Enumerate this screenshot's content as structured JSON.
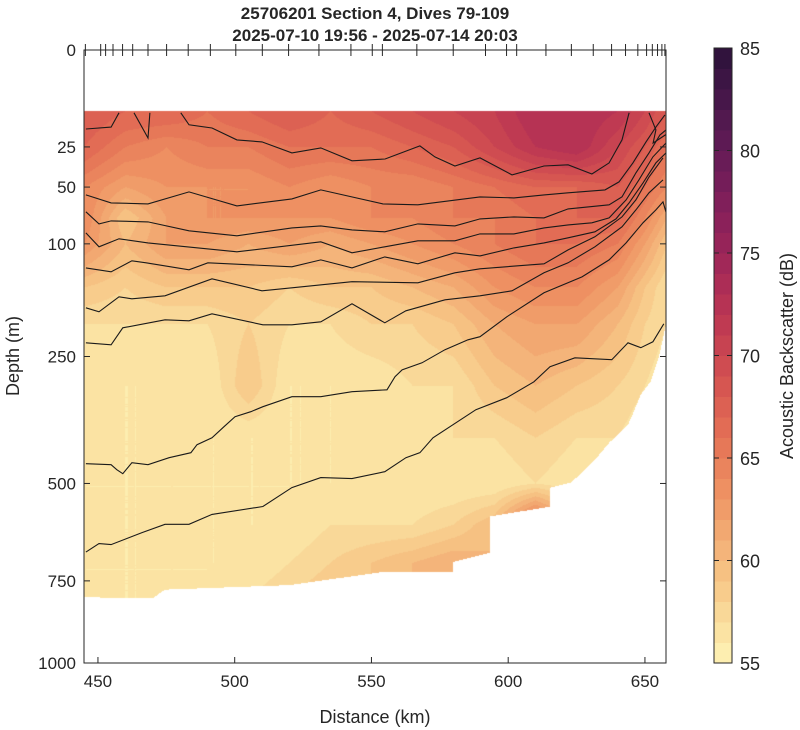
{
  "chart_data": {
    "type": "heatmap",
    "subtype": "filled-contour section with line contours",
    "title": [
      "25706201 Section 4, Dives 79-109",
      "2025-07-10 19:56 - 2025-07-14 20:03"
    ],
    "xlabel": "Distance (km)",
    "ylabel": "Depth (m)",
    "xlim": [
      444.9,
      657.7
    ],
    "ylim": [
      0,
      1000
    ],
    "y_scale": "sqrt",
    "y_reversed": true,
    "xticks": [
      450,
      500,
      550,
      600,
      650
    ],
    "yticks": [
      0,
      25,
      50,
      100,
      250,
      500,
      750,
      1000
    ],
    "colorbar": {
      "label": "Acoustic Backscatter (dB)",
      "range": [
        55,
        85
      ],
      "ticks": [
        55,
        60,
        65,
        70,
        75,
        80,
        85
      ],
      "level_step": 1,
      "colors": [
        "#fdeeb0",
        "#fbe3a3",
        "#f9d898",
        "#f8cc8c",
        "#f6c182",
        "#f4b47a",
        "#f2a871",
        "#f09c69",
        "#ee9062",
        "#ea845d",
        "#e67858",
        "#e26c55",
        "#dc6153",
        "#d65651",
        "#cf4c51",
        "#c74351",
        "#bf3a52",
        "#b63354",
        "#ac2d56",
        "#a12858",
        "#962459",
        "#8b215a",
        "#801f5a",
        "#741d59",
        "#691c57",
        "#5d1a54",
        "#52194f",
        "#47174a",
        "#3c1544",
        "#31133d"
      ]
    },
    "dive_positions_km": [
      445.4,
      451,
      452.8,
      455.5,
      459,
      462.7,
      468.3,
      475.1,
      483,
      491.1,
      500.4,
      510.1,
      519.7,
      530.8,
      542.5,
      550.3,
      554,
      566.6,
      579.9,
      591.7,
      599.4,
      603.1,
      613.8,
      623.1,
      631.1,
      637.8,
      642.9,
      647.4,
      650.6,
      652.7,
      654.6,
      656.2,
      657.3
    ],
    "grid": {
      "distance_km": [
        445,
        460,
        475,
        490,
        505,
        520,
        535,
        550,
        565,
        580,
        595,
        610,
        625,
        640,
        650,
        658
      ],
      "depth_m": [
        10,
        25,
        50,
        75,
        100,
        150,
        200,
        300,
        400,
        500,
        600,
        700,
        800
      ],
      "backscatter_db": [
        [
          68,
          67,
          67,
          66,
          67,
          68,
          67,
          68,
          69,
          70,
          71,
          73,
          73,
          72,
          70,
          68
        ],
        [
          67,
          65,
          64,
          65,
          65,
          66,
          66,
          66,
          67,
          68,
          70,
          72,
          73,
          70,
          68,
          66
        ],
        [
          64,
          62,
          63,
          63,
          63,
          64,
          63,
          64,
          64,
          65,
          66,
          67,
          67,
          68,
          66,
          64
        ],
        [
          64,
          59,
          62,
          63,
          63,
          63,
          63,
          64,
          64,
          65,
          65,
          66,
          67,
          67,
          64,
          61
        ],
        [
          63,
          60,
          62,
          62,
          61,
          62,
          61,
          62,
          63,
          64,
          65,
          66,
          66,
          65,
          62,
          59
        ],
        [
          59,
          58,
          59,
          59,
          59,
          58,
          59,
          59,
          60,
          61,
          63,
          64,
          64,
          62,
          59,
          57
        ],
        [
          57,
          57,
          57,
          57,
          58,
          57,
          57,
          58,
          58,
          59,
          61,
          62,
          62,
          60,
          58,
          57
        ],
        [
          56,
          56,
          56,
          56,
          59,
          56,
          56,
          56,
          57,
          57,
          59,
          60,
          59,
          58,
          57,
          56
        ],
        [
          56,
          56,
          56,
          56,
          56,
          56,
          56,
          56,
          56,
          57,
          57,
          58,
          57,
          57,
          56,
          56
        ],
        [
          56,
          56,
          56,
          56,
          56,
          56,
          56,
          56,
          56,
          56,
          56,
          57,
          56,
          56,
          56,
          56
        ],
        [
          56,
          56,
          56,
          56,
          56,
          56,
          57,
          57,
          57,
          58,
          60,
          67,
          60,
          56,
          56,
          56
        ],
        [
          56,
          56,
          56,
          56,
          56,
          57,
          58,
          59,
          60,
          61,
          60,
          60,
          60,
          56,
          56,
          56
        ],
        [
          56,
          56,
          56,
          56,
          57,
          58,
          59,
          59,
          60,
          61,
          60,
          60,
          60,
          56,
          56,
          56
        ]
      ],
      "top_depth_m": 10,
      "bottom_profile": [
        [
          444.8,
          797
        ],
        [
          470,
          800
        ],
        [
          474.5,
          775
        ],
        [
          520,
          762
        ],
        [
          555,
          724
        ],
        [
          580,
          724
        ],
        [
          580,
          697
        ],
        [
          593.3,
          673
        ],
        [
          593.3,
          579
        ],
        [
          615.3,
          555
        ],
        [
          615.3,
          510
        ],
        [
          623,
          498
        ],
        [
          631.7,
          447
        ],
        [
          637,
          410
        ],
        [
          643.8,
          374
        ],
        [
          648.5,
          316
        ],
        [
          652,
          293
        ],
        [
          655,
          252
        ],
        [
          657.7,
          200
        ]
      ]
    },
    "contour_lines": [
      [
        [
          445.6,
          16.6
        ],
        [
          454.8,
          15.8
        ],
        [
          457.7,
          10.5
        ]
      ],
      [
        [
          463.2,
          10.5
        ],
        [
          468.3,
          20.6
        ],
        [
          469.0,
          10.5
        ]
      ],
      [
        [
          480.3,
          10.5
        ],
        [
          483.3,
          14.9
        ],
        [
          491.7,
          16.2
        ],
        [
          500.8,
          21.5
        ],
        [
          510.0,
          22.5
        ],
        [
          520.9,
          28.2
        ],
        [
          531.5,
          25.5
        ],
        [
          542.9,
          32.7
        ],
        [
          555.0,
          31.6
        ],
        [
          567.7,
          24.5
        ],
        [
          573.2,
          30.4
        ],
        [
          580.5,
          35.8
        ],
        [
          589.7,
          31.0
        ],
        [
          601.4,
          41.5
        ],
        [
          613.1,
          35.8
        ],
        [
          621.9,
          35.1
        ],
        [
          630.6,
          40.9
        ],
        [
          636.9,
          33.9
        ],
        [
          641.6,
          21.5
        ],
        [
          644.2,
          10.5
        ]
      ],
      [
        [
          651.5,
          10.5
        ],
        [
          654.0,
          17.0
        ],
        [
          653.0,
          23.0
        ],
        [
          657.7,
          19.0
        ]
      ],
      [
        [
          445.6,
          55.9
        ],
        [
          454.8,
          62.2
        ],
        [
          468.3,
          63.0
        ],
        [
          483.3,
          53.6
        ],
        [
          500.8,
          64.7
        ],
        [
          520.9,
          59.0
        ],
        [
          531.5,
          52.1
        ],
        [
          554.2,
          63.0
        ],
        [
          567.0,
          63.8
        ],
        [
          589.7,
          57.4
        ],
        [
          602.1,
          58.2
        ],
        [
          613.1,
          55.9
        ],
        [
          621.9,
          54.3
        ],
        [
          635.4,
          52.1
        ],
        [
          640.5,
          46.3
        ],
        [
          645.6,
          33.9
        ],
        [
          650.4,
          22.5
        ],
        [
          654.0,
          15.8
        ],
        [
          657.3,
          11.2
        ]
      ],
      [
        [
          445.6,
          69.7
        ],
        [
          450.4,
          80.5
        ],
        [
          454.8,
          77.7
        ],
        [
          468.3,
          78.6
        ],
        [
          483.3,
          87.0
        ],
        [
          500.8,
          91.9
        ],
        [
          520.9,
          84.2
        ],
        [
          531.5,
          82.3
        ],
        [
          542.9,
          86.1
        ],
        [
          554.9,
          88.0
        ],
        [
          567.0,
          80.5
        ],
        [
          580.5,
          82.3
        ],
        [
          589.7,
          75.9
        ],
        [
          602.1,
          74.1
        ],
        [
          613.1,
          75.0
        ],
        [
          621.9,
          67.2
        ],
        [
          636.9,
          63.8
        ],
        [
          641.6,
          57.4
        ],
        [
          646.7,
          40.2
        ],
        [
          651.5,
          28.2
        ],
        [
          655.5,
          19.2
        ],
        [
          657.7,
          17.0
        ]
      ],
      [
        [
          445.6,
          89.0
        ],
        [
          450.4,
          103.1
        ],
        [
          457.7,
          94.9
        ],
        [
          468.3,
          99.0
        ],
        [
          500.8,
          108.4
        ],
        [
          531.5,
          97.9
        ],
        [
          542.9,
          109.5
        ],
        [
          554.9,
          103.1
        ],
        [
          567.0,
          96.9
        ],
        [
          580.5,
          96.9
        ],
        [
          589.7,
          90.0
        ],
        [
          602.1,
          90.0
        ],
        [
          613.1,
          84.2
        ],
        [
          621.9,
          81.4
        ],
        [
          630.6,
          79.5
        ],
        [
          636.9,
          75.0
        ],
        [
          643.1,
          59.8
        ],
        [
          647.8,
          44.9
        ],
        [
          652.9,
          30.4
        ],
        [
          657.7,
          23.0
        ]
      ],
      [
        [
          445.6,
          126.3
        ],
        [
          454.8,
          130.9
        ],
        [
          462.4,
          118.3
        ],
        [
          467.6,
          120.5
        ],
        [
          483.3,
          128.6
        ],
        [
          490.2,
          120.5
        ],
        [
          520.9,
          125.1
        ],
        [
          531.5,
          117.2
        ],
        [
          542.9,
          126.3
        ],
        [
          554.9,
          113.9
        ],
        [
          567.0,
          121.7
        ],
        [
          580.5,
          109.5
        ],
        [
          589.7,
          112.8
        ],
        [
          602.1,
          104.2
        ],
        [
          613.1,
          99.0
        ],
        [
          621.9,
          93.9
        ],
        [
          631.7,
          88.0
        ],
        [
          639.4,
          75.9
        ],
        [
          644.2,
          62.2
        ],
        [
          649.3,
          47.0
        ],
        [
          654.0,
          33.9
        ],
        [
          657.7,
          28.2
        ]
      ],
      [
        [
          445.6,
          176.9
        ],
        [
          450.4,
          182.4
        ],
        [
          457.7,
          162.1
        ],
        [
          462.4,
          164.7
        ],
        [
          474.5,
          160.8
        ],
        [
          491.7,
          139.3
        ],
        [
          510.0,
          154.3
        ],
        [
          520.9,
          150.5
        ],
        [
          542.9,
          142.9
        ],
        [
          567.0,
          144.2
        ],
        [
          580.5,
          132.1
        ],
        [
          589.7,
          127.4
        ],
        [
          613.1,
          121.7
        ],
        [
          621.9,
          106.3
        ],
        [
          631.7,
          92.9
        ],
        [
          641.6,
          74.1
        ],
        [
          646.7,
          59.8
        ],
        [
          651.5,
          42.9
        ],
        [
          656.6,
          31.0
        ]
      ],
      [
        [
          445.6,
          228.1
        ],
        [
          454.8,
          231.2
        ],
        [
          459.1,
          205.3
        ],
        [
          474.5,
          193.7
        ],
        [
          483.3,
          195.1
        ],
        [
          491.7,
          185.2
        ],
        [
          510.3,
          201.0
        ],
        [
          520.9,
          201.0
        ],
        [
          531.5,
          196.6
        ],
        [
          542.9,
          171.4
        ],
        [
          554.9,
          198.0
        ],
        [
          562.6,
          181.0
        ],
        [
          576.9,
          166.0
        ],
        [
          589.7,
          160.8
        ],
        [
          601.4,
          154.3
        ],
        [
          613.1,
          132.1
        ],
        [
          621.9,
          120.5
        ],
        [
          631.7,
          103.1
        ],
        [
          641.6,
          83.2
        ],
        [
          646.7,
          68.0
        ],
        [
          651.5,
          54.3
        ],
        [
          656.6,
          44.9
        ]
      ],
      [
        [
          445.6,
          455.4
        ],
        [
          454.8,
          457.6
        ],
        [
          456.9,
          468.7
        ],
        [
          459.1,
          477.7
        ],
        [
          462.4,
          453.2
        ],
        [
          468.3,
          457.6
        ],
        [
          476.0,
          442.3
        ],
        [
          484.0,
          431.6
        ],
        [
          486.2,
          414.6
        ],
        [
          491.7,
          400.2
        ],
        [
          496.1,
          377.6
        ],
        [
          500.1,
          357.9
        ],
        [
          505.9,
          348.2
        ],
        [
          510.3,
          338.6
        ],
        [
          520.9,
          319.9
        ],
        [
          531.5,
          319.9
        ],
        [
          542.9,
          310.8
        ],
        [
          555.7,
          307.2
        ],
        [
          558.6,
          284.1
        ],
        [
          561.2,
          272.1
        ],
        [
          568.5,
          260.3
        ],
        [
          576.9,
          239.1
        ],
        [
          585.3,
          223.5
        ],
        [
          589.7,
          218.8
        ],
        [
          599.5,
          189.4
        ],
        [
          613.1,
          156.9
        ],
        [
          627.0,
          137.0
        ],
        [
          636.9,
          117.2
        ],
        [
          643.1,
          99.0
        ],
        [
          649.3,
          79.5
        ],
        [
          654.0,
          68.0
        ],
        [
          656.6,
          61.4
        ],
        [
          657.7,
          70.0
        ]
      ],
      [
        [
          445.6,
          670.8
        ],
        [
          450.4,
          648.3
        ],
        [
          454.8,
          651.1
        ],
        [
          466.1,
          619.8
        ],
        [
          474.5,
          598.7
        ],
        [
          483.3,
          598.7
        ],
        [
          491.7,
          573.9
        ],
        [
          510.3,
          554.6
        ],
        [
          520.9,
          509.7
        ],
        [
          531.5,
          486.6
        ],
        [
          542.9,
          488.9
        ],
        [
          554.9,
          473.2
        ],
        [
          562.6,
          442.3
        ],
        [
          567.7,
          431.6
        ],
        [
          572.5,
          400.2
        ],
        [
          588.2,
          344.4
        ],
        [
          599.5,
          321.7
        ],
        [
          609.4,
          293.0
        ],
        [
          615.3,
          267.0
        ],
        [
          624.4,
          252.1
        ],
        [
          637.9,
          255.3
        ],
        [
          643.8,
          228.1
        ],
        [
          648.5,
          235.9
        ],
        [
          652.9,
          226.6
        ],
        [
          656.9,
          199.5
        ]
      ]
    ]
  }
}
